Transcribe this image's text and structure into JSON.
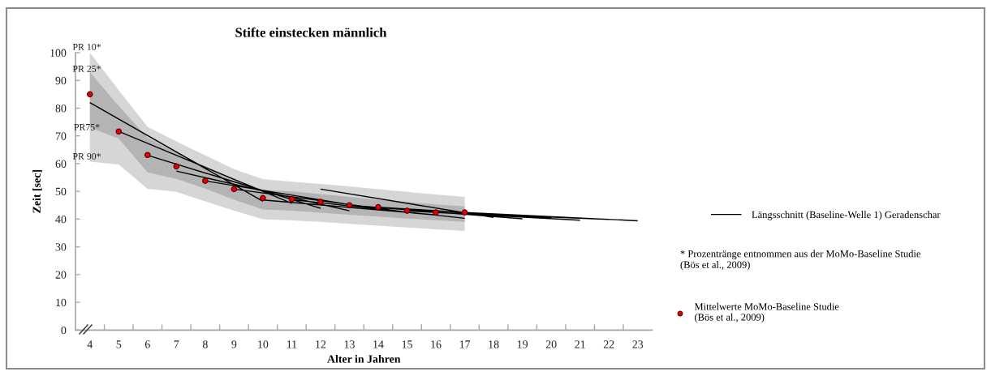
{
  "chart_data": {
    "type": "line",
    "title": "Stifte einstecken männlich",
    "xlabel": "Alter in Jahren",
    "ylabel": "Zeit [sec]",
    "xlim": [
      3.5,
      23.5
    ],
    "xticks": [
      4,
      5,
      6,
      7,
      8,
      9,
      10,
      11,
      12,
      13,
      14,
      15,
      16,
      17,
      18,
      19,
      20,
      21,
      22,
      23,
      {
        "value": 4.5,
        "label": null
      },
      {
        "value": 5.5,
        "label": null
      },
      {
        "value": 6.5,
        "label": null
      },
      {
        "value": 7.5,
        "label": null
      },
      {
        "value": 8.5,
        "label": null
      },
      {
        "value": 9.5,
        "label": null
      },
      {
        "value": 10.5,
        "label": null
      },
      {
        "value": 11.5,
        "label": null
      },
      {
        "value": 12.5,
        "label": null
      },
      {
        "value": 13.5,
        "label": null
      },
      {
        "value": 14.5,
        "label": null
      },
      {
        "value": 15.5,
        "label": null
      },
      {
        "value": 16.5,
        "label": null
      },
      {
        "value": 17.5,
        "label": null
      },
      {
        "value": 18.5,
        "label": null
      },
      {
        "value": 19.5,
        "label": null
      },
      {
        "value": 20.5,
        "label": null
      },
      {
        "value": 21.5,
        "label": null
      },
      {
        "value": 22.5,
        "label": null
      }
    ],
    "ylim": [
      0,
      100
    ],
    "yticks": [
      0,
      10,
      20,
      30,
      40,
      50,
      60,
      70,
      80,
      90,
      100
    ],
    "legend": "right",
    "x": [
      4,
      5,
      6,
      7,
      8,
      9,
      10,
      11,
      12,
      13,
      14,
      15,
      16,
      17
    ],
    "annotations": [
      "PR 10*",
      "PR 25*",
      "PR75*",
      "PR 90*",
      "* Prozentränge entnommen aus der MoMo-Baseline Studie\n(Bös et al., 2009)"
    ],
    "series": [
      {
        "color": "#d6d6d6",
        "values": [
          null,
          null,
          null,
          null,
          null,
          null,
          null,
          null,
          null,
          null,
          null,
          null,
          null,
          null
        ],
        "upper": [
          100,
          86.5,
          73.3,
          68,
          63,
          58,
          54.4,
          53.5,
          52.7,
          51.8,
          50.8,
          49.8,
          48.9,
          48
        ],
        "lower": [
          60.7,
          59.7,
          50.9,
          49.8,
          46.4,
          43,
          40,
          39.5,
          39,
          38.3,
          37.6,
          37,
          36.3,
          35.7
        ]
      },
      {
        "color": "#b4b4b4",
        "values": [
          null,
          null,
          null,
          null,
          null,
          null,
          null,
          null,
          null,
          null,
          null,
          null,
          null,
          null
        ],
        "upper": [
          93,
          80.8,
          69.3,
          64,
          59,
          54.5,
          50.5,
          50,
          49,
          48,
          47,
          46.2,
          45.3,
          44.6
        ],
        "lower": [
          73,
          69,
          56.8,
          54.5,
          51,
          47,
          43.5,
          43,
          42.3,
          41.6,
          40.9,
          40.2,
          39.6,
          39
        ]
      },
      {
        "name": "Längsschnitt (Baseline-Welle 1) Geradenschar",
        "color": "#000000",
        "x": [
          4,
          10,
          null,
          5,
          11,
          null,
          6,
          12,
          null,
          7,
          13,
          null,
          8,
          14,
          null,
          9,
          15,
          null,
          10,
          16,
          null,
          11,
          17,
          null,
          12,
          18,
          null,
          13,
          19,
          null,
          14,
          20,
          null,
          15,
          21,
          null,
          16,
          22,
          null,
          17,
          23
        ],
        "values": [
          82.0,
          46.4,
          null,
          71.6,
          45.7,
          null,
          63.0,
          43.9,
          null,
          57.3,
          43.0,
          null,
          53.8,
          43.5,
          null,
          50.8,
          42.5,
          null,
          46.9,
          41.5,
          null,
          47.0,
          40.3,
          null,
          50.8,
          40.6,
          null,
          45.0,
          40.1,
          null,
          44.3,
          40.4,
          null,
          43.0,
          39.6,
          null,
          42.4,
          39.9,
          null,
          42.4,
          39.4
        ]
      },
      {
        "type": "scatter",
        "name": "Mittelwerte MoMo-Baseline Studie\n(Bös et al., 2009)",
        "color": "#e30000",
        "marker": "circle",
        "values": [
          85.0,
          71.6,
          63.1,
          59.0,
          53.8,
          50.8,
          47.6,
          47.2,
          46.2,
          45.0,
          44.3,
          43.0,
          42.4,
          42.4
        ]
      }
    ]
  }
}
